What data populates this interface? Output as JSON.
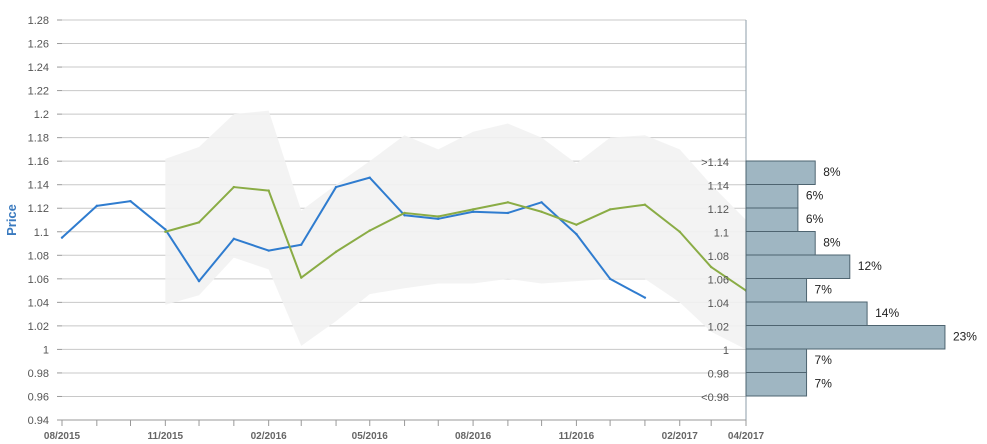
{
  "chart_data": {
    "type": "line",
    "ylabel": "Price",
    "ylim": [
      0.94,
      1.28
    ],
    "y_ticks": [
      "0.94",
      "0.96",
      "0.98",
      "1",
      "1.02",
      "1.04",
      "1.06",
      "1.08",
      "1.1",
      "1.12",
      "1.14",
      "1.16",
      "1.18",
      "1.2",
      "1.22",
      "1.24",
      "1.26",
      "1.28"
    ],
    "x_ticks": [
      "08/2015",
      "11/2015",
      "02/2016",
      "05/2016",
      "08/2016",
      "11/2016",
      "02/2017",
      "04/2017"
    ],
    "x_tick_dates": [
      "2015-08",
      "2015-11",
      "2016-02",
      "2016-05",
      "2016-08",
      "2016-11",
      "2017-02",
      "2017-04"
    ],
    "grid": true,
    "series": [
      {
        "role": "actual",
        "color": "#2f7ccf",
        "x": [
          "2015-08",
          "2015-09",
          "2015-10",
          "2015-11",
          "2015-12",
          "2016-01",
          "2016-02",
          "2016-03",
          "2016-04",
          "2016-05",
          "2016-06",
          "2016-07",
          "2016-08",
          "2016-09",
          "2016-10",
          "2016-11",
          "2016-12",
          "2017-01"
        ],
        "values": [
          1.095,
          1.122,
          1.126,
          1.102,
          1.058,
          1.094,
          1.084,
          1.089,
          1.138,
          1.146,
          1.114,
          1.111,
          1.117,
          1.116,
          1.125,
          1.098,
          1.06,
          1.044
        ]
      },
      {
        "role": "forecast",
        "color": "#8aac45",
        "x": [
          "2015-11",
          "2015-12",
          "2016-01",
          "2016-02",
          "2016-03",
          "2016-04",
          "2016-05",
          "2016-06",
          "2016-07",
          "2016-08",
          "2016-09",
          "2016-10",
          "2016-11",
          "2016-12",
          "2017-01",
          "2017-02",
          "2017-03",
          "2017-04"
        ],
        "values": [
          1.1,
          1.108,
          1.138,
          1.135,
          1.061,
          1.083,
          1.101,
          1.116,
          1.113,
          1.119,
          1.125,
          1.117,
          1.106,
          1.119,
          1.123,
          1.1,
          1.07,
          1.05
        ]
      }
    ],
    "band": {
      "color": "#f2f2f2",
      "x": [
        "2015-11",
        "2015-12",
        "2016-01",
        "2016-02",
        "2016-03",
        "2016-04",
        "2016-05",
        "2016-06",
        "2016-07",
        "2016-08",
        "2016-09",
        "2016-10",
        "2016-11",
        "2016-12",
        "2017-01",
        "2017-02",
        "2017-03",
        "2017-04"
      ],
      "upper": [
        1.162,
        1.172,
        1.2,
        1.203,
        1.118,
        1.14,
        1.16,
        1.182,
        1.17,
        1.185,
        1.192,
        1.18,
        1.158,
        1.18,
        1.182,
        1.17,
        1.14,
        1.11
      ],
      "lower": [
        1.038,
        1.046,
        1.078,
        1.068,
        1.003,
        1.024,
        1.047,
        1.052,
        1.056,
        1.056,
        1.06,
        1.056,
        1.058,
        1.06,
        1.06,
        1.04,
        1.015,
        1.0
      ]
    },
    "distribution": {
      "color": "#9fb6c2",
      "bins": [
        {
          "label": ">1.14",
          "percent": 8,
          "text": "8%"
        },
        {
          "label": "1.14",
          "percent": 6,
          "text": "6%"
        },
        {
          "label": "1.12",
          "percent": 6,
          "text": "6%"
        },
        {
          "label": "1.1",
          "percent": 8,
          "text": "8%"
        },
        {
          "label": "1.08",
          "percent": 12,
          "text": "12%"
        },
        {
          "label": "1.06",
          "percent": 7,
          "text": "7%"
        },
        {
          "label": "1.04",
          "percent": 14,
          "text": "14%"
        },
        {
          "label": "1.02",
          "percent": 23,
          "text": "23%"
        },
        {
          "label": "1",
          "percent": 7,
          "text": "7%"
        },
        {
          "label": "0.98",
          "percent": 7,
          "text": "7%"
        },
        {
          "label": "<0.98",
          "percent": 0,
          "text": ""
        }
      ]
    }
  }
}
